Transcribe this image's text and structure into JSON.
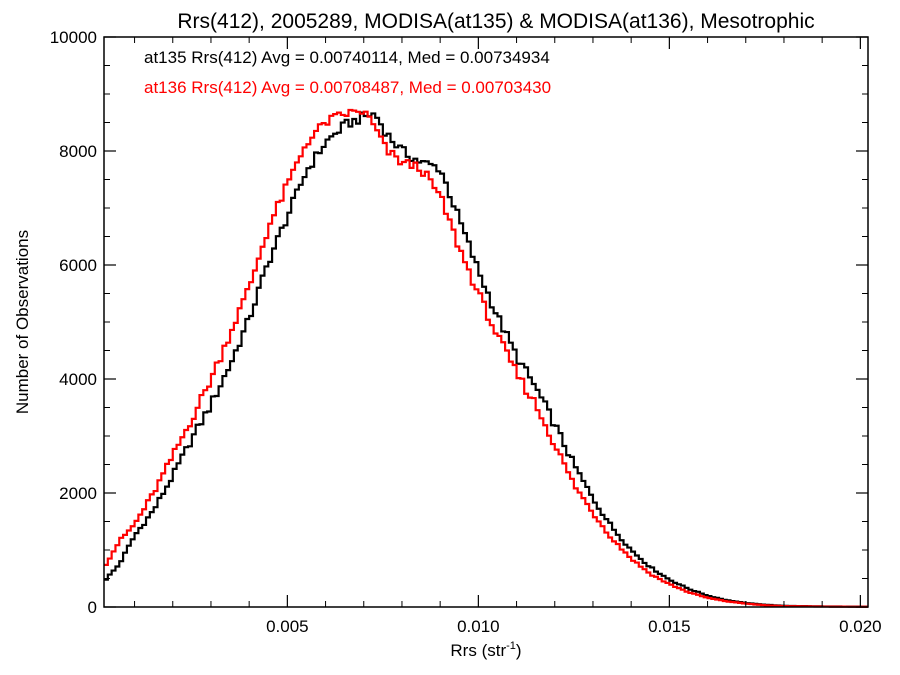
{
  "chart_data": {
    "type": "line",
    "title": "Rrs(412), 2005289, MODISA(at135) & MODISA(at136), Mesotrophic",
    "xlabel": "Rrs (str",
    "xlabel_sup": "-1",
    "xlabel_end": ")",
    "ylabel": "Number of Observations",
    "xlim": [
      0.0002,
      0.0202
    ],
    "ylim": [
      0,
      10000
    ],
    "xticks": [
      0.005,
      0.01,
      0.015,
      0.02
    ],
    "xtick_labels": [
      "0.005",
      "0.010",
      "0.015",
      "0.020"
    ],
    "yticks": [
      0,
      2000,
      4000,
      6000,
      8000,
      10000
    ],
    "ytick_labels": [
      "0",
      "2000",
      "4000",
      "6000",
      "8000",
      "10000"
    ],
    "grid": false,
    "series": [
      {
        "name": "at135",
        "color": "#000000",
        "annotation": "at135 Rrs(412) Avg = 0.00740114, Med = 0.00734934",
        "x": [
          0.0002,
          0.0006,
          0.001,
          0.0015,
          0.002,
          0.0025,
          0.003,
          0.0035,
          0.004,
          0.0045,
          0.005,
          0.0055,
          0.006,
          0.0065,
          0.007,
          0.0073,
          0.0076,
          0.008,
          0.0085,
          0.009,
          0.0095,
          0.01,
          0.0105,
          0.011,
          0.0115,
          0.012,
          0.0125,
          0.013,
          0.0135,
          0.014,
          0.0145,
          0.015,
          0.0155,
          0.016,
          0.0165,
          0.017,
          0.0175,
          0.018,
          0.019,
          0.0202
        ],
        "values": [
          450,
          750,
          1250,
          1700,
          2300,
          2950,
          3550,
          4250,
          5050,
          6050,
          6850,
          7650,
          8150,
          8450,
          8600,
          8650,
          8300,
          8000,
          7800,
          7700,
          6800,
          5900,
          5100,
          4400,
          3850,
          3200,
          2500,
          1900,
          1400,
          1000,
          700,
          480,
          320,
          200,
          120,
          70,
          40,
          20,
          10,
          5
        ]
      },
      {
        "name": "at136",
        "color": "#ff0000",
        "annotation": "at136 Rrs(412) Avg = 0.00708487, Med = 0.00703430",
        "x": [
          0.0002,
          0.0006,
          0.001,
          0.0015,
          0.002,
          0.0025,
          0.003,
          0.0035,
          0.004,
          0.0045,
          0.005,
          0.0055,
          0.006,
          0.0065,
          0.007,
          0.0073,
          0.0076,
          0.008,
          0.0085,
          0.009,
          0.0095,
          0.01,
          0.0105,
          0.011,
          0.0115,
          0.012,
          0.0125,
          0.013,
          0.0135,
          0.014,
          0.0145,
          0.015,
          0.0155,
          0.016,
          0.0165,
          0.017,
          0.0175,
          0.018,
          0.019,
          0.0202
        ],
        "values": [
          700,
          1150,
          1450,
          2000,
          2650,
          3300,
          4000,
          4800,
          5600,
          6650,
          7400,
          8150,
          8500,
          8650,
          8700,
          8400,
          8000,
          7800,
          7700,
          7200,
          6300,
          5500,
          4750,
          4100,
          3550,
          2850,
          2150,
          1650,
          1200,
          850,
          580,
          400,
          260,
          160,
          100,
          60,
          30,
          15,
          8,
          4
        ]
      }
    ]
  }
}
